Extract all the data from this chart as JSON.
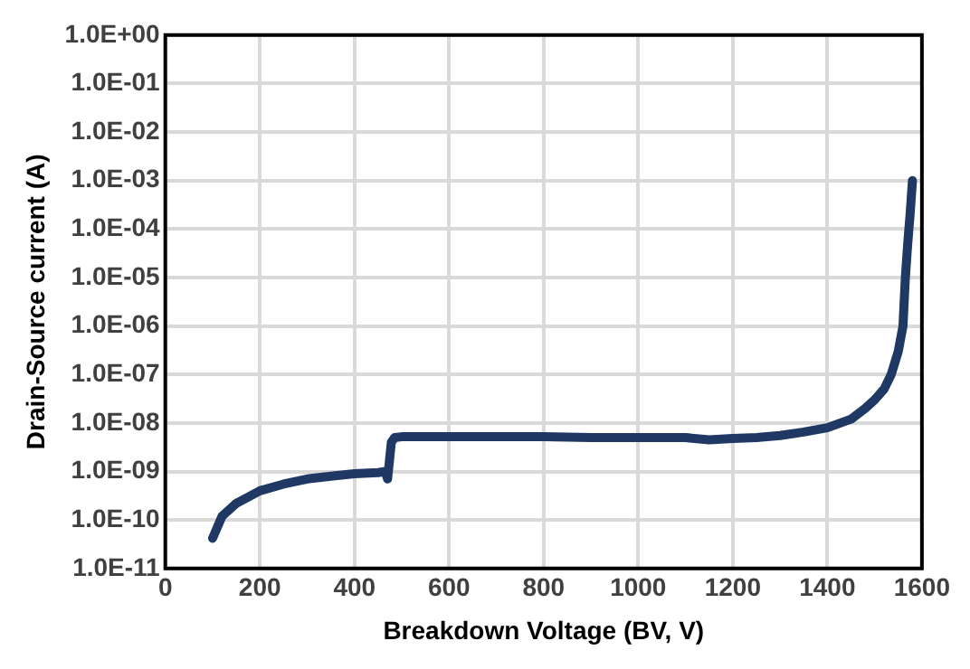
{
  "chart_data": {
    "type": "line",
    "xlabel": "Breakdown Voltage (BV, V)",
    "ylabel": "Drain-Source current (A)",
    "log": "y",
    "grid": true,
    "legend": false,
    "marker": "none",
    "line_style": "solid",
    "xlim": [
      0,
      1600
    ],
    "xticks": [
      0,
      200,
      400,
      600,
      800,
      1000,
      1200,
      1400,
      1600
    ],
    "ylim": [
      1e-11,
      1
    ],
    "yticks": [
      {
        "value": 1e-11,
        "label": "1.0E-11"
      },
      {
        "value": 1e-10,
        "label": "1.0E-10"
      },
      {
        "value": 1e-09,
        "label": "1.0E-09"
      },
      {
        "value": 1e-08,
        "label": "1.0E-08"
      },
      {
        "value": 1e-07,
        "label": "1.0E-07"
      },
      {
        "value": 1e-06,
        "label": "1.0E-06"
      },
      {
        "value": 1e-05,
        "label": "1.0E-05"
      },
      {
        "value": 0.0001,
        "label": "1.0E-04"
      },
      {
        "value": 0.001,
        "label": "1.0E-03"
      },
      {
        "value": 0.01,
        "label": "1.0E-02"
      },
      {
        "value": 0.1,
        "label": "1.0E-01"
      },
      {
        "value": 1,
        "label": "1.0E+00"
      }
    ],
    "series": [
      {
        "color": "#1f3864",
        "x": [
          100,
          120,
          150,
          200,
          250,
          300,
          350,
          400,
          450,
          465,
          470,
          478,
          485,
          500,
          600,
          800,
          900,
          1000,
          1100,
          1150,
          1200,
          1250,
          1300,
          1350,
          1400,
          1450,
          1480,
          1500,
          1520,
          1535,
          1550,
          1560,
          1565,
          1570,
          1575,
          1580
        ],
        "values": [
          4.2e-11,
          1.2e-10,
          2.2e-10,
          4e-10,
          5.5e-10,
          7e-10,
          8e-10,
          9e-10,
          9.5e-10,
          1e-09,
          7e-10,
          4e-09,
          5e-09,
          5.2e-09,
          5.2e-09,
          5.2e-09,
          5e-09,
          5e-09,
          5e-09,
          4.5e-09,
          4.8e-09,
          5e-09,
          5.5e-09,
          6.5e-09,
          8e-09,
          1.2e-08,
          2e-08,
          3e-08,
          5e-08,
          1e-07,
          3e-07,
          1e-06,
          1e-05,
          5e-05,
          0.0002,
          0.001
        ]
      }
    ]
  }
}
